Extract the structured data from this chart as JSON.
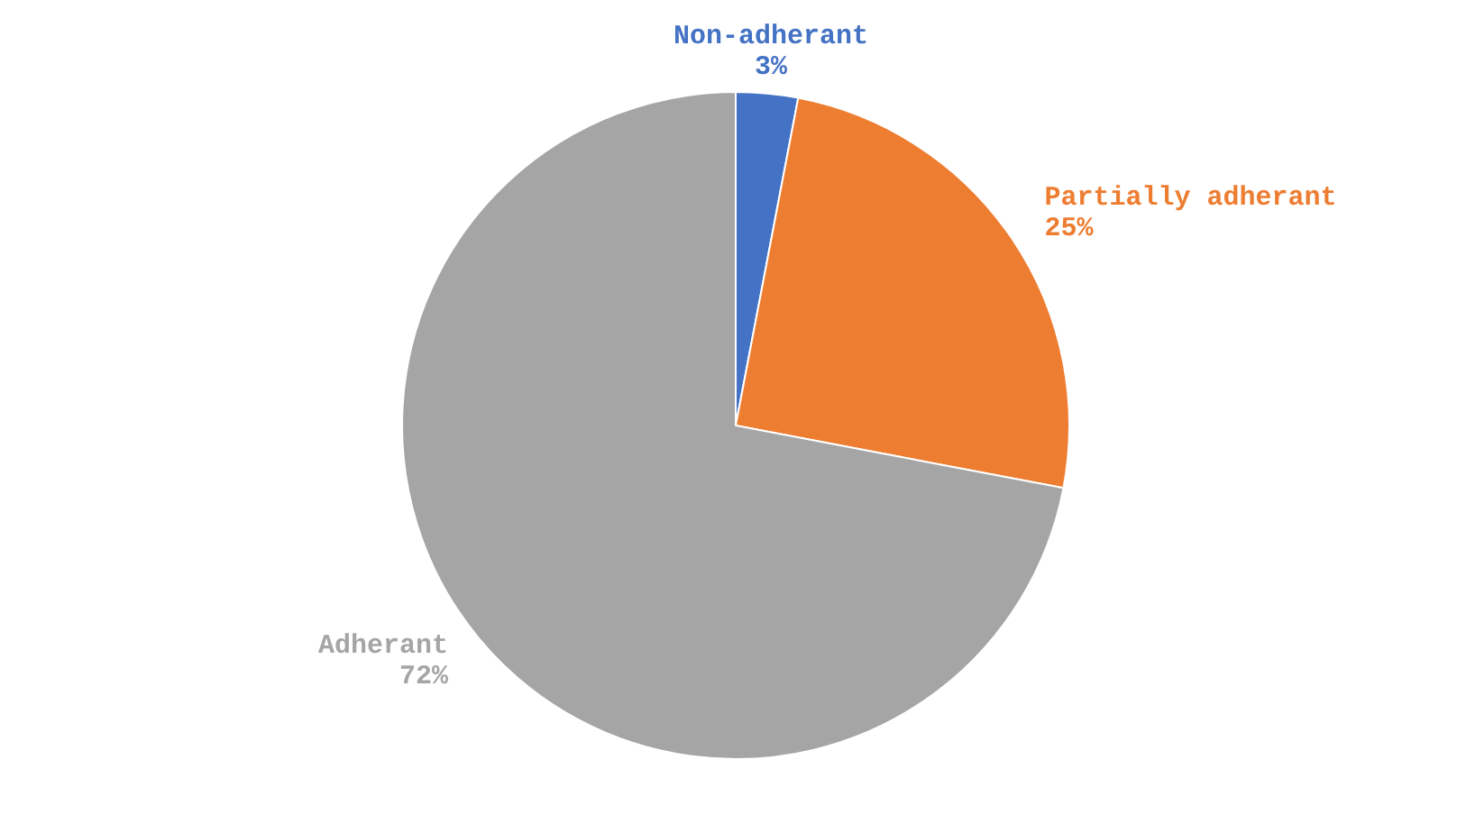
{
  "chart_data": {
    "type": "pie",
    "categories": [
      "Non-adherant",
      "Partially adherant",
      "Adherant"
    ],
    "values": [
      3,
      25,
      72
    ],
    "colors": [
      "#4472c4",
      "#ed7d31",
      "#a5a5a5"
    ],
    "value_labels": [
      "3%",
      "25%",
      "72%"
    ],
    "legend": false
  }
}
